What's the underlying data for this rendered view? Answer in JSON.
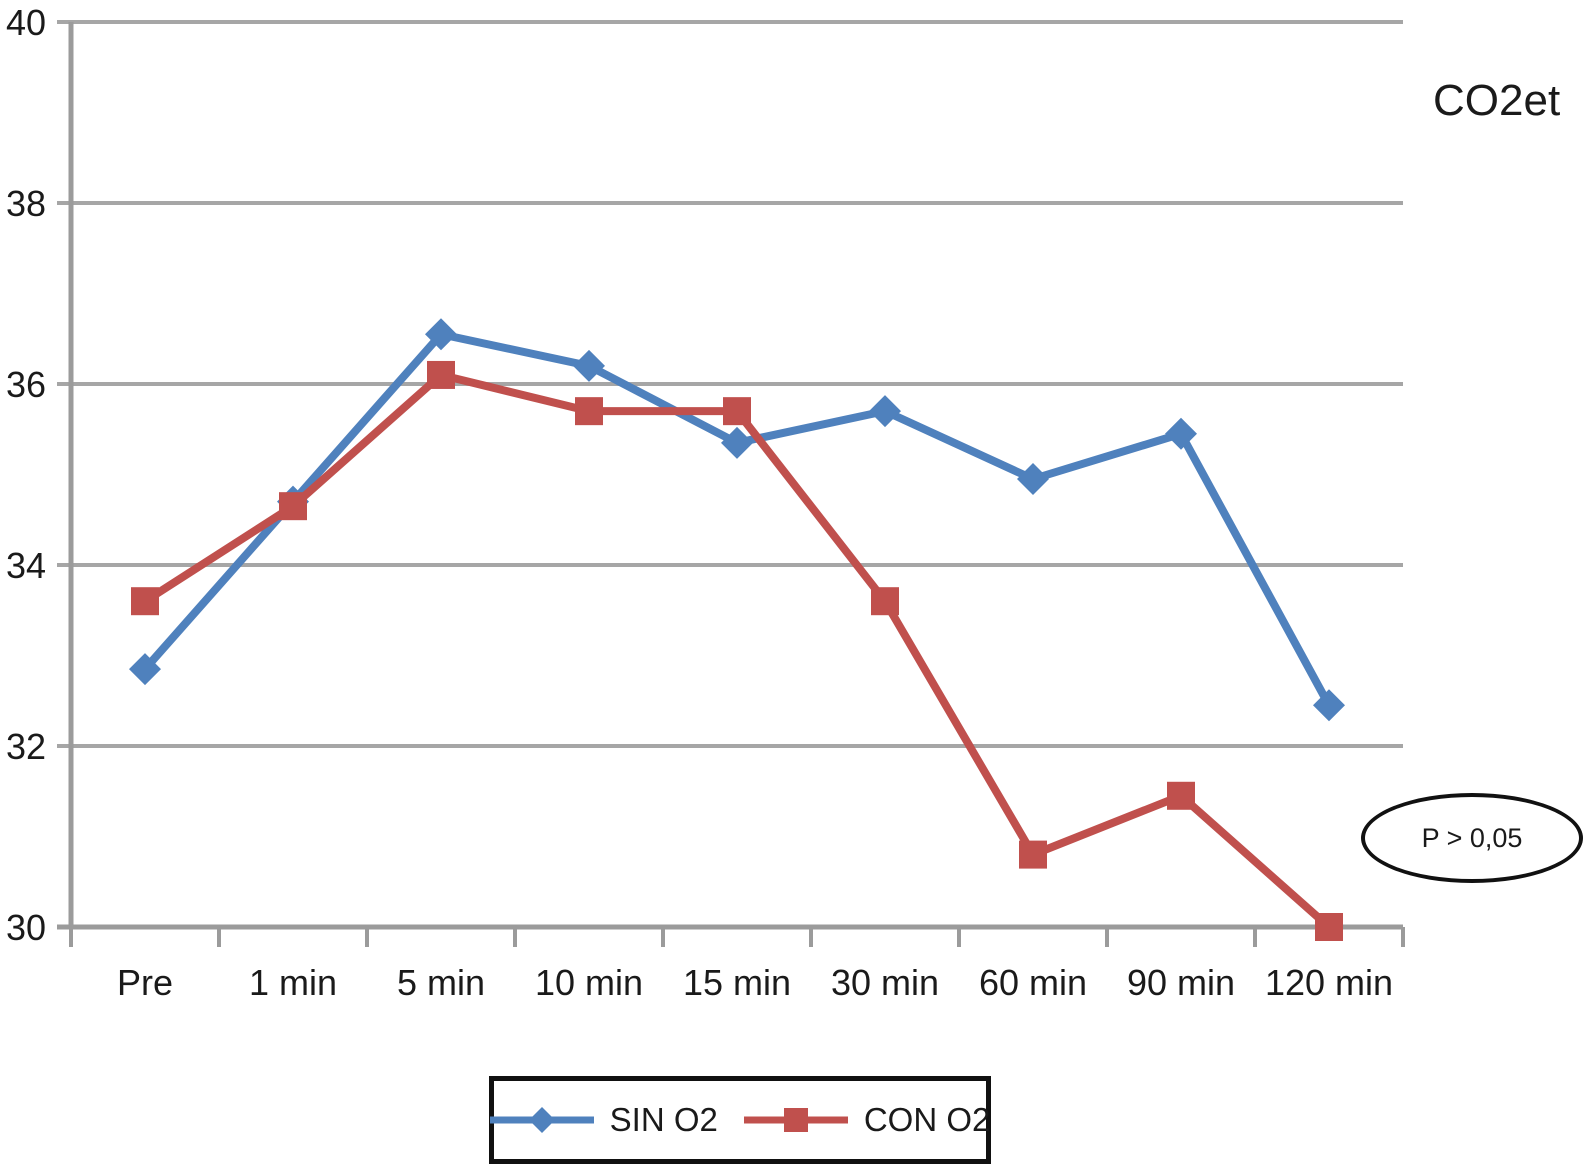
{
  "chart_data": {
    "type": "line",
    "title": "CO2et",
    "categories": [
      "Pre",
      "1 min",
      "5 min",
      "10 min",
      "15 min",
      "30 min",
      "60 min",
      "90 min",
      "120 min"
    ],
    "series": [
      {
        "name": "SIN O2",
        "color": "#4F81BD",
        "marker": "diamond",
        "values": [
          32.85,
          34.7,
          36.55,
          36.2,
          35.35,
          35.7,
          34.95,
          35.45,
          32.45
        ]
      },
      {
        "name": "CON O2",
        "color": "#C0504D",
        "marker": "square",
        "values": [
          33.6,
          34.65,
          36.1,
          35.7,
          35.7,
          33.6,
          30.8,
          31.45,
          30.0
        ]
      }
    ],
    "ylim": [
      30,
      40
    ],
    "yticks": [
      30,
      32,
      34,
      36,
      38,
      40
    ],
    "xlabel": "",
    "ylabel": "",
    "grid": true,
    "legend_position": "bottom",
    "grid_color": "#A6A6A6",
    "axis_color": "#9B9B9B",
    "text_color": "#1A1A1A"
  },
  "annotation": {
    "label": "P > 0,05"
  },
  "legend": {
    "items": [
      {
        "label": "SIN O2"
      },
      {
        "label": "CON O2"
      }
    ]
  }
}
